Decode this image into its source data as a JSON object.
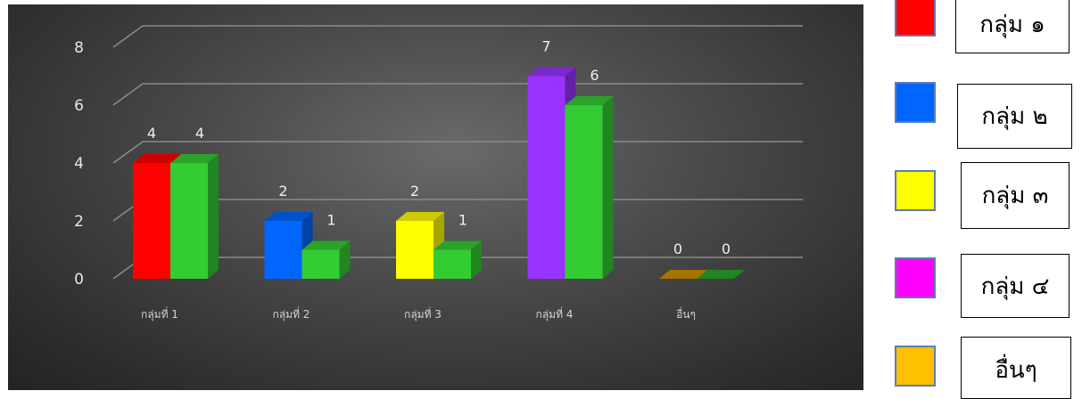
{
  "chart_data": {
    "type": "bar",
    "ylim": [
      0,
      8
    ],
    "yticks": [
      0,
      2,
      4,
      6,
      8
    ],
    "grid": true,
    "categories": [
      "กลุ่มที่ 1",
      "กลุ่มที่ 2",
      "กลุ่มที่ 3",
      "กลุ่มที่ 4",
      "อื่นๆ"
    ],
    "series": [
      {
        "values": [
          4,
          2,
          2,
          7,
          0
        ],
        "colors": [
          "#ff0000",
          "#0066ff",
          "#ffff00",
          "#9933ff",
          "#ffb300"
        ]
      },
      {
        "values": [
          4,
          1,
          1,
          6,
          0
        ],
        "colors": [
          "#33cc33",
          "#33cc33",
          "#33cc33",
          "#33cc33",
          "#33cc33"
        ]
      }
    ],
    "data_labels": true
  },
  "legend": {
    "items": [
      {
        "label": "กลุ่ม ๑",
        "color": "#ff0000"
      },
      {
        "label": "กลุ่ม ๒",
        "color": "#0066ff"
      },
      {
        "label": "กลุ่ม ๓",
        "color": "#ffff00"
      },
      {
        "label": "กลุ่ม ๔",
        "color": "#ff00ff"
      },
      {
        "label": "อื่นๆ",
        "color": "#ffc000"
      }
    ]
  }
}
